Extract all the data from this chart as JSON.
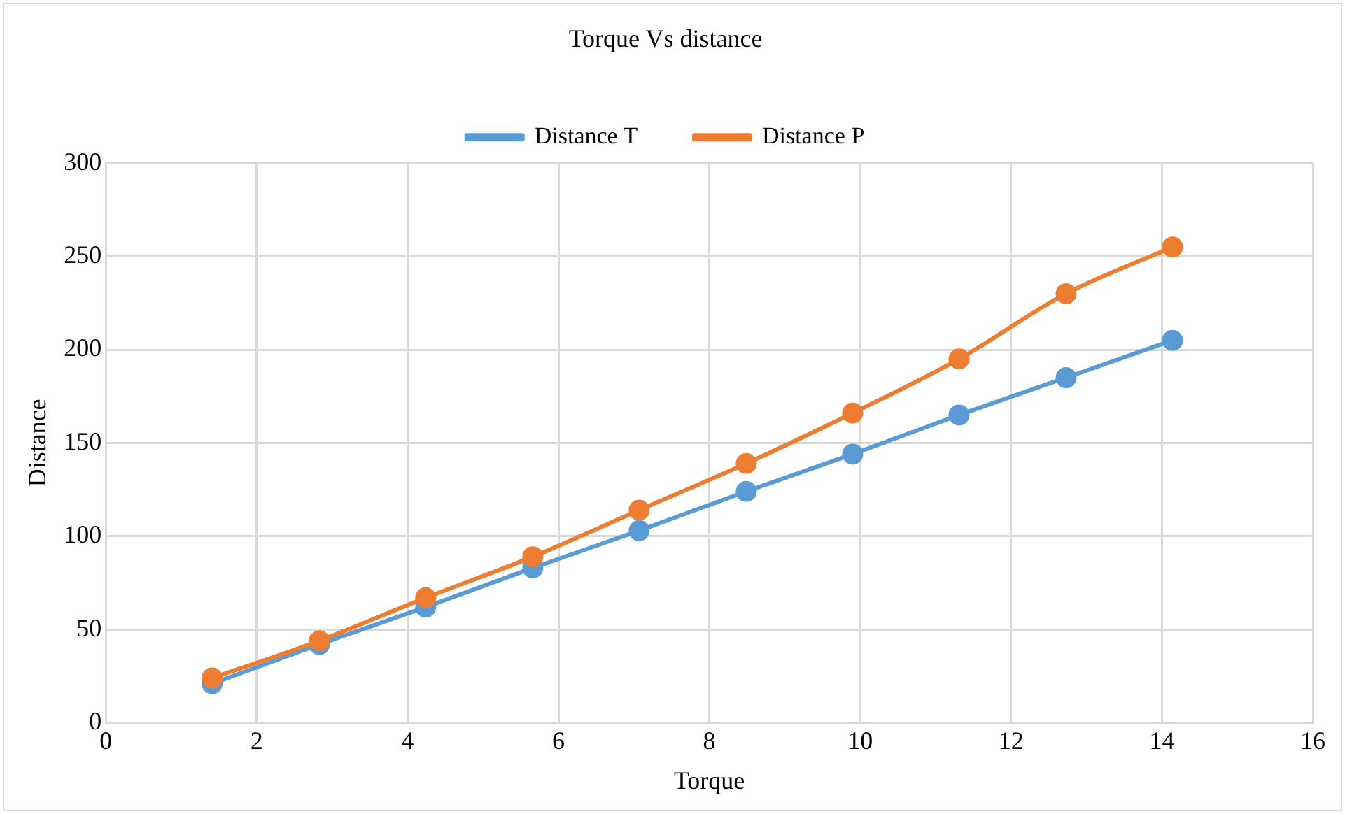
{
  "chart_data": {
    "type": "line",
    "title": "Torque Vs distance",
    "xlabel": "Torque",
    "ylabel": "Distance",
    "x": [
      1.41,
      2.83,
      4.24,
      5.66,
      7.07,
      8.49,
      9.9,
      11.31,
      12.73,
      14.14
    ],
    "series": [
      {
        "name": "Distance T",
        "color": "#5b9bd5",
        "values": [
          21,
          42,
          62,
          83,
          103,
          124,
          144,
          165,
          185,
          205
        ]
      },
      {
        "name": "Distance P",
        "color": "#ed7d31",
        "values": [
          24,
          44,
          67,
          89,
          114,
          139,
          166,
          195,
          230,
          255
        ]
      }
    ],
    "xlim": [
      0,
      16
    ],
    "xticks": [
      0,
      2,
      4,
      6,
      8,
      10,
      12,
      14,
      16
    ],
    "ylim": [
      0,
      300
    ],
    "yticks": [
      0,
      50,
      100,
      150,
      200,
      250,
      300
    ],
    "grid": true,
    "legend": "top",
    "marker": "circle",
    "line_style": "solid"
  }
}
